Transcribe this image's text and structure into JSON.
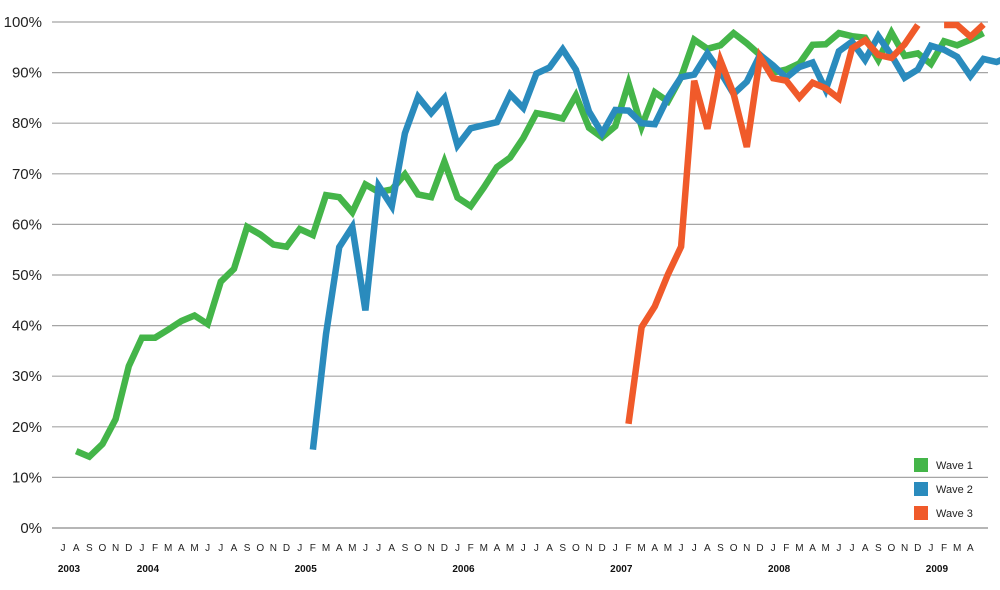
{
  "chart_data": {
    "type": "line",
    "title": "",
    "xlabel": "",
    "ylabel": "",
    "ylim": [
      0,
      100
    ],
    "y_tick_values": [
      0,
      10,
      20,
      30,
      40,
      50,
      60,
      70,
      80,
      90,
      100
    ],
    "y_tick_labels": [
      "0%",
      "10%",
      "20%",
      "30%",
      "40%",
      "50%",
      "60%",
      "70%",
      "80%",
      "90%",
      "100%"
    ],
    "grid": true,
    "legend_position": "bottom-right",
    "x_months": [
      "J",
      "A",
      "S",
      "O",
      "N",
      "D",
      "J",
      "F",
      "M",
      "A",
      "M",
      "J",
      "J",
      "A",
      "S",
      "O",
      "N",
      "D",
      "J",
      "F",
      "M",
      "A",
      "M",
      "J",
      "J",
      "A",
      "S",
      "O",
      "N",
      "D",
      "J",
      "F",
      "M",
      "A",
      "M",
      "J",
      "J",
      "A",
      "S",
      "O",
      "N",
      "D",
      "J",
      "F",
      "M",
      "A",
      "M",
      "J",
      "J",
      "A",
      "S",
      "O",
      "N",
      "D",
      "J",
      "F",
      "M",
      "A",
      "M",
      "J",
      "J",
      "A",
      "S",
      "O",
      "N",
      "D",
      "J",
      "F",
      "M",
      "A"
    ],
    "x_years": [
      {
        "label": "2003",
        "month_index": 0
      },
      {
        "label": "2004",
        "month_index": 6
      },
      {
        "label": "2005",
        "month_index": 18
      },
      {
        "label": "2006",
        "month_index": 30
      },
      {
        "label": "2007",
        "month_index": 42
      },
      {
        "label": "2008",
        "month_index": 54
      },
      {
        "label": "2009",
        "month_index": 66
      }
    ],
    "series": [
      {
        "name": "Wave 1",
        "color": "#44b549",
        "start_index": 1,
        "values": [
          15.2,
          14.1,
          16.6,
          21.5,
          32.0,
          37.6,
          37.6,
          39.2,
          40.9,
          42.0,
          40.3,
          48.7,
          51.2,
          59.5,
          58.0,
          56.0,
          55.6,
          59.1,
          57.9,
          65.8,
          65.4,
          62.4,
          67.9,
          66.4,
          66.9,
          69.9,
          65.9,
          65.4,
          72.4,
          65.3,
          63.6,
          67.3,
          71.3,
          73.2,
          77.1,
          82.0,
          81.5,
          80.9,
          85.5,
          79.1,
          77.2,
          79.4,
          87.9,
          79.3,
          86.1,
          84.3,
          89.1,
          96.5,
          94.7,
          95.4,
          97.8,
          95.8,
          93.5,
          90.0,
          90.6,
          91.8,
          95.5,
          95.6,
          97.8,
          97.2,
          96.9,
          92.5,
          97.9,
          93.3,
          93.8,
          91.7,
          96.2,
          95.4,
          96.5,
          97.8
        ]
      },
      {
        "name": "Wave 2",
        "color": "#2a8bbd",
        "start_index": 19,
        "values": [
          15.5,
          38.3,
          55.5,
          59.5,
          43.0,
          67.6,
          63.6,
          78.0,
          85.2,
          82.0,
          85.0,
          75.6,
          79.0,
          79.6,
          80.2,
          85.7,
          83.0,
          89.8,
          91.0,
          94.6,
          90.6,
          82.3,
          78.0,
          82.6,
          82.5,
          80.0,
          79.8,
          85.1,
          89.1,
          89.6,
          93.8,
          90.1,
          85.8,
          88.2,
          93.5,
          91.4,
          89.0,
          91.1,
          92.0,
          86.6,
          94.2,
          96.1,
          92.5,
          97.2,
          93.4,
          89.0,
          90.6,
          95.3,
          94.5,
          93.1,
          89.3,
          92.7,
          92.1,
          93.2
        ]
      },
      {
        "name": "Wave 3",
        "color": "#f05a2a",
        "start_index": 43,
        "values": [
          20.6,
          39.7,
          43.8,
          50.1,
          55.6,
          88.4,
          78.9,
          92.4,
          85.8,
          75.3,
          93.1,
          88.9,
          88.4,
          85.1,
          88.0,
          86.9,
          84.9,
          94.8,
          96.4,
          93.5,
          92.9,
          95.6,
          99.4,
          null,
          99.4,
          99.4,
          97.1,
          99.5
        ]
      }
    ]
  }
}
